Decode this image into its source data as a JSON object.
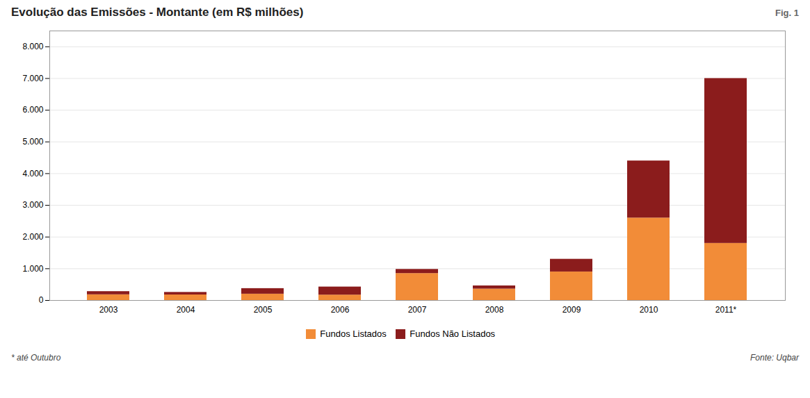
{
  "chart_data": {
    "type": "bar",
    "stacked": true,
    "title": "Evolução das Emissões - Montante (em R$ milhões)",
    "annotations": [
      "Fig. 1",
      "* até Outubro",
      "Fonte: Uqbar"
    ],
    "categories": [
      "2003",
      "2004",
      "2005",
      "2006",
      "2007",
      "2008",
      "2009",
      "2010",
      "2011*"
    ],
    "series": [
      {
        "name": "Fundos Listados",
        "color": "#F28C38",
        "values": [
          180,
          175,
          200,
          170,
          850,
          360,
          900,
          2600,
          1800
        ]
      },
      {
        "name": "Fundos Não Listados",
        "color": "#8B1C1C",
        "values": [
          100,
          80,
          175,
          255,
          130,
          100,
          400,
          1800,
          5200
        ]
      }
    ],
    "ylim": [
      0,
      8500
    ],
    "yticks": [
      0,
      {
        "value": 1000,
        "label": "1.000"
      },
      {
        "value": 2000,
        "label": "2.000"
      },
      {
        "value": 3000,
        "label": "3.000"
      },
      {
        "value": 4000,
        "label": "4.000"
      },
      {
        "value": 5000,
        "label": "5.000"
      },
      {
        "value": 6000,
        "label": "6.000"
      },
      {
        "value": 7000,
        "label": "7.000"
      },
      {
        "value": 8000,
        "label": "8.000"
      }
    ],
    "grid": true,
    "legend": "bottom"
  }
}
